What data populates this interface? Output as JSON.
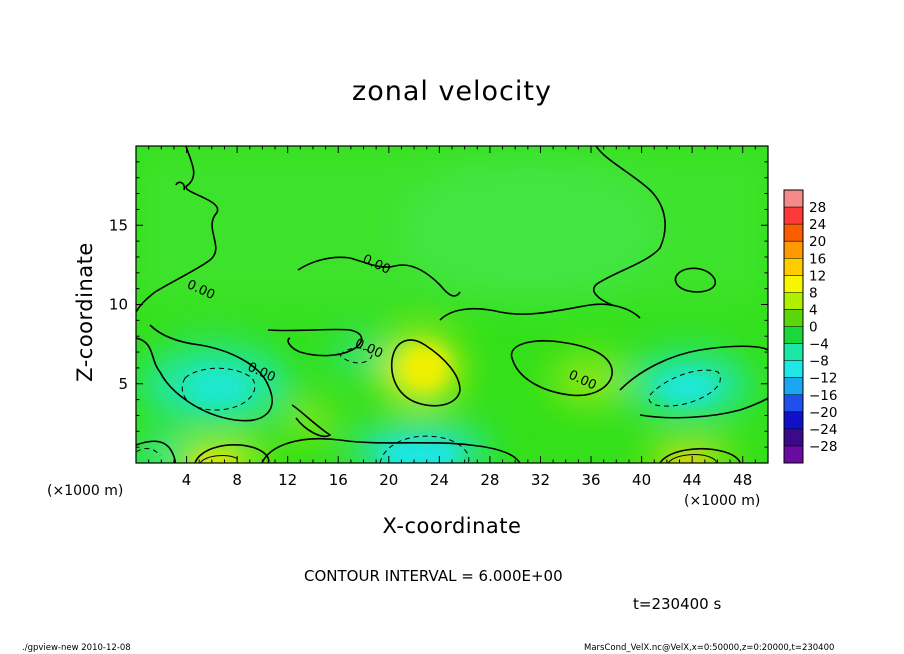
{
  "chart_data": {
    "type": "heatmap",
    "title": "zonal velocity",
    "xlabel": "X-coordinate",
    "ylabel": "Z-coordinate",
    "x_unit_label": "(×1000 m)",
    "x_unit_label_right": "(×1000 m)",
    "xlim": [
      0,
      50
    ],
    "ylim": [
      0,
      20
    ],
    "x_ticks": [
      4,
      8,
      12,
      16,
      20,
      24,
      28,
      32,
      36,
      40,
      44,
      48
    ],
    "y_ticks": [
      5,
      10,
      15
    ],
    "colorbar_levels": [
      28,
      24,
      20,
      16,
      12,
      8,
      4,
      0,
      -4,
      -8,
      -12,
      -16,
      -20,
      -24,
      -28
    ],
    "colorbar_colors": [
      "#f48a8a",
      "#fd3a3a",
      "#fd5b00",
      "#fd9a00",
      "#fdcd00",
      "#f6f600",
      "#aef000",
      "#5bd60b",
      "#1ad83b",
      "#1be6a6",
      "#20e7e7",
      "#1aa6f0",
      "#1e50f0",
      "#1010c8",
      "#3a0a8a",
      "#6a0aa0"
    ],
    "contour_interval_text": "CONTOUR INTERVAL = 6.000E+00",
    "time_text": "t=230400 s",
    "contour_labels": [
      {
        "text": "0.00",
        "x": 5.0,
        "z": 10.7
      },
      {
        "text": "0.00",
        "x": 18.9,
        "z": 12.3
      },
      {
        "text": "0.00",
        "x": 18.3,
        "z": 7.0
      },
      {
        "text": "0.00",
        "x": 9.8,
        "z": 5.5
      },
      {
        "text": "0.00",
        "x": 35.2,
        "z": 5.0
      }
    ],
    "field_features": [
      {
        "kind": "positive-max",
        "x": 22.5,
        "z": 6.0,
        "value": 10
      },
      {
        "kind": "negative-min",
        "x": 7.0,
        "z": 4.8,
        "value": -8
      },
      {
        "kind": "negative-min",
        "x": 42.5,
        "z": 4.5,
        "value": -8
      },
      {
        "kind": "negative-min",
        "x": 21.0,
        "z": 1.0,
        "value": -10
      },
      {
        "kind": "positive-max",
        "x": 43.5,
        "z": 0.4,
        "value": 12
      },
      {
        "kind": "positive-max",
        "x": 7.5,
        "z": 0.4,
        "value": 10
      }
    ]
  },
  "footer": {
    "left": "./gpview-new  2010-12-08",
    "right": "MarsCond_VelX.nc@VelX,x=0:50000,z=0:20000,t=230400"
  }
}
